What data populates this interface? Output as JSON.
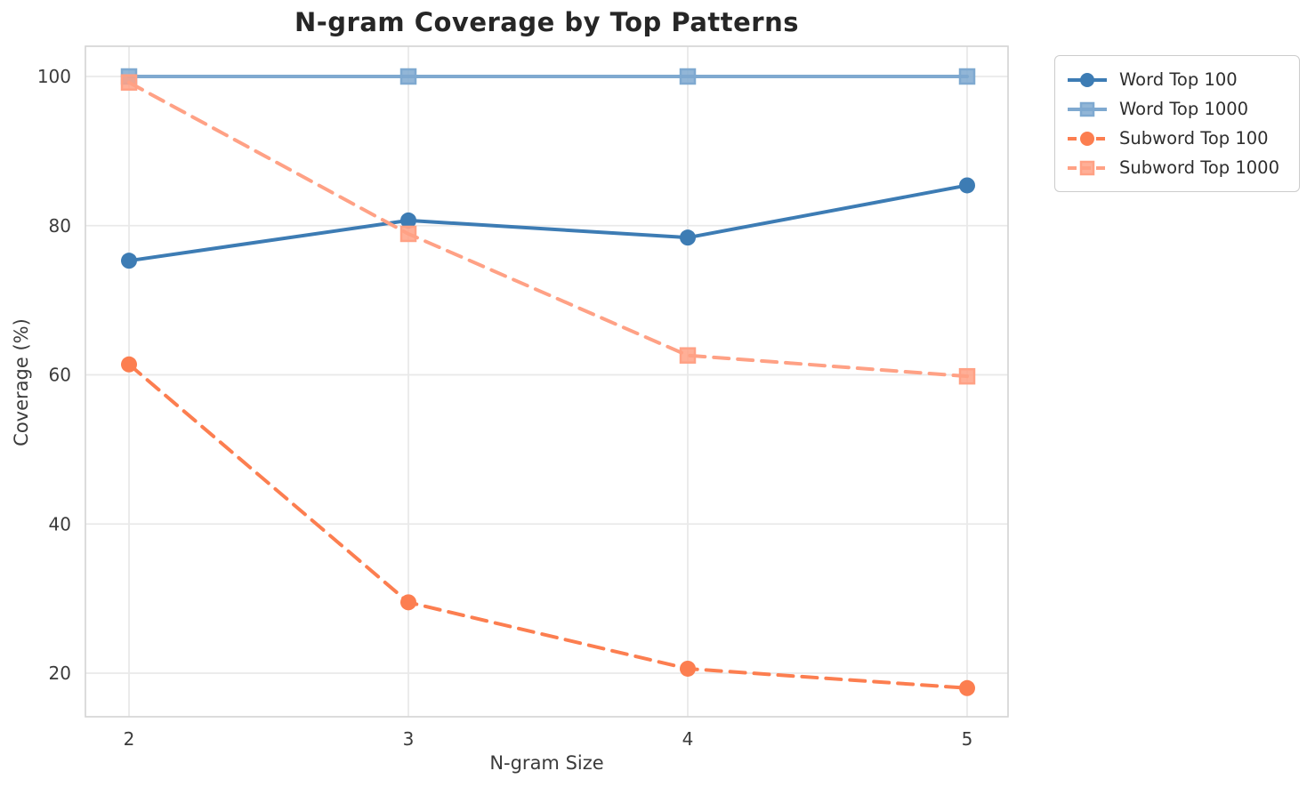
{
  "chart_data": {
    "type": "line",
    "title": "N-gram Coverage by Top Patterns",
    "xlabel": "N-gram Size",
    "ylabel": "Coverage (%)",
    "x": [
      2,
      3,
      4,
      5
    ],
    "x_tick_labels": [
      "2",
      "3",
      "4",
      "5"
    ],
    "y_ticks": [
      20,
      40,
      60,
      80,
      100
    ],
    "xlim": [
      1.84,
      5.15
    ],
    "ylim": [
      14.2,
      104.1
    ],
    "grid": true,
    "legend_position": "upper-right-outside",
    "series": [
      {
        "name": "Word Top 100",
        "values": [
          75.3,
          80.7,
          78.4,
          85.4
        ],
        "color": "#3d7cb4",
        "line_style": "solid",
        "marker": "circle"
      },
      {
        "name": "Word Top 1000",
        "values": [
          100.0,
          100.0,
          100.0,
          100.0
        ],
        "color": "#7fa9d0",
        "line_style": "solid",
        "marker": "square"
      },
      {
        "name": "Subword Top 100",
        "values": [
          61.4,
          29.5,
          20.6,
          18.0
        ],
        "color": "#fc7e50",
        "line_style": "dashed",
        "marker": "circle"
      },
      {
        "name": "Subword Top 1000",
        "values": [
          99.2,
          78.9,
          62.6,
          59.8
        ],
        "color": "#ffa185",
        "line_style": "dashed",
        "marker": "square"
      }
    ],
    "style": {
      "grid_color": "#e9e9e9",
      "spine_color": "#d4d4d4",
      "background": "#ffffff",
      "text_color": "#3b3b3b",
      "title_color": "#262626"
    }
  }
}
